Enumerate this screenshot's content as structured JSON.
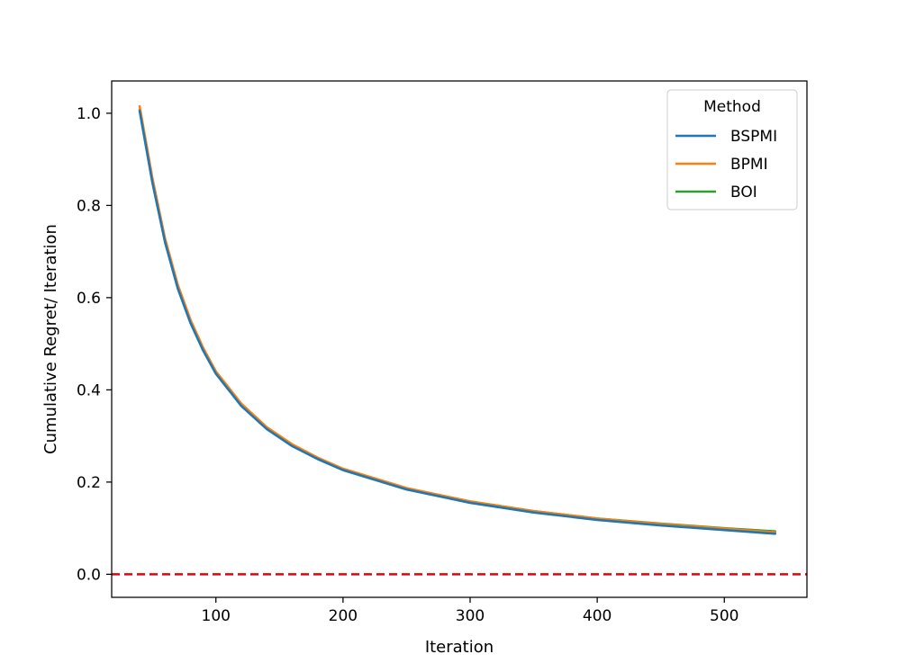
{
  "chart_data": {
    "type": "line",
    "title": "",
    "xlabel": "Iteration",
    "ylabel": "Cumulative Regret/ Iteration",
    "xlim": [
      18,
      565
    ],
    "ylim": [
      -0.05,
      1.07
    ],
    "xticks": [
      100,
      200,
      300,
      400,
      500
    ],
    "yticks": [
      0.0,
      0.2,
      0.4,
      0.6,
      0.8,
      1.0
    ],
    "xtick_labels": [
      "100",
      "200",
      "300",
      "400",
      "500"
    ],
    "ytick_labels": [
      "0.0",
      "0.2",
      "0.4",
      "0.6",
      "0.8",
      "1.0"
    ],
    "grid": false,
    "legend": {
      "title": "Method",
      "placement": "top-right",
      "entries": [
        "BSPMI",
        "BPMI",
        "BOI"
      ]
    },
    "x": [
      40,
      50,
      60,
      70,
      80,
      90,
      100,
      120,
      140,
      160,
      180,
      200,
      250,
      300,
      350,
      400,
      450,
      500,
      540
    ],
    "series": [
      {
        "name": "BSPMI",
        "color": "#1f77b4",
        "values": [
          1.005,
          0.85,
          0.72,
          0.62,
          0.545,
          0.485,
          0.435,
          0.365,
          0.315,
          0.278,
          0.25,
          0.226,
          0.184,
          0.155,
          0.134,
          0.118,
          0.106,
          0.096,
          0.088
        ]
      },
      {
        "name": "BPMI",
        "color": "#ff7f0e",
        "values": [
          1.015,
          0.86,
          0.728,
          0.628,
          0.552,
          0.491,
          0.44,
          0.37,
          0.319,
          0.282,
          0.253,
          0.229,
          0.187,
          0.158,
          0.137,
          0.121,
          0.109,
          0.099,
          0.091
        ]
      },
      {
        "name": "BOI",
        "color": "#2ca02c",
        "values": [
          1.008,
          0.854,
          0.724,
          0.624,
          0.548,
          0.488,
          0.437,
          0.368,
          0.317,
          0.28,
          0.252,
          0.228,
          0.186,
          0.158,
          0.137,
          0.121,
          0.11,
          0.1,
          0.093
        ]
      }
    ],
    "reference_line": {
      "y": 0.0,
      "color": "#e8000b",
      "style": "dashed"
    }
  }
}
